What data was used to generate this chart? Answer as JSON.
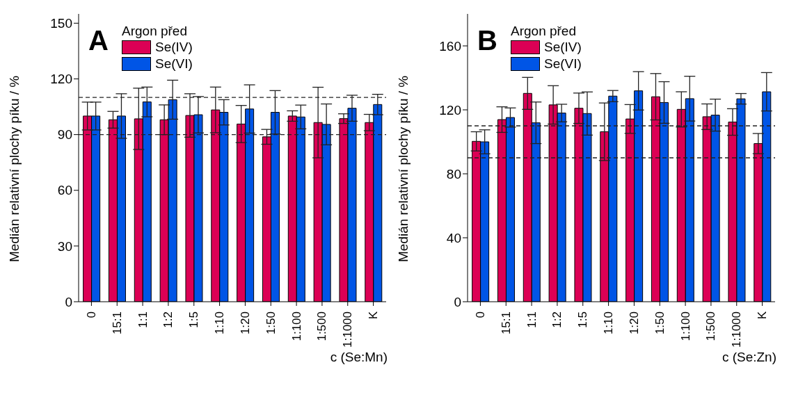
{
  "chart_data": [
    {
      "type": "bar",
      "annotations": [
        "A"
      ],
      "xlabel": "c (Se:Mn)",
      "ylabel": "Medián relativní plochy píku / %",
      "legend_title": "Argon před",
      "legend": "top left",
      "grid": false,
      "categories": [
        "0",
        "15:1",
        "1:1",
        "1:2",
        "1:5",
        "1:10",
        "1:20",
        "1:50",
        "1:100",
        "1:500",
        "1:1000",
        "K"
      ],
      "ylim": [
        0,
        155
      ],
      "yticks": [
        0,
        30,
        60,
        90,
        120,
        150
      ],
      "ref_lines": [
        {
          "axis": "y",
          "value": 90,
          "line_style": "dashed"
        },
        {
          "axis": "y",
          "value": 110,
          "line_style": "dashed"
        }
      ],
      "series": [
        {
          "name": "Se(IV)",
          "color": "#dc0055",
          "values": [
            100,
            98,
            98.5,
            98,
            100.3,
            103.3,
            95.7,
            88.8,
            100,
            96.5,
            98.6,
            96.5
          ],
          "errors": [
            7.5,
            4.5,
            16.5,
            8,
            11.7,
            12.3,
            10,
            4,
            2.8,
            19,
            2.6,
            4.4
          ]
        },
        {
          "name": "Se(VI)",
          "color": "#0055e6",
          "values": [
            100,
            100,
            107.6,
            108.8,
            100.7,
            102,
            103.8,
            102,
            99.5,
            95.5,
            104.2,
            106.2
          ],
          "errors": [
            7.5,
            12,
            8,
            10.5,
            9.8,
            6.8,
            13,
            11.7,
            6.4,
            11,
            7,
            5.5
          ]
        }
      ]
    },
    {
      "type": "bar",
      "annotations": [
        "B"
      ],
      "xlabel": "c (Se:Zn)",
      "ylabel": "Medián relativní plochy píku / %",
      "legend_title": "Argon před",
      "legend": "top left",
      "grid": false,
      "categories": [
        "0",
        "15:1",
        "1:1",
        "1:2",
        "1:5",
        "1:10",
        "1:20",
        "1:50",
        "1:100",
        "1:500",
        "1:1000",
        "K"
      ],
      "ylim": [
        0,
        180
      ],
      "yticks": [
        0,
        40,
        80,
        120,
        160
      ],
      "ref_lines": [
        {
          "axis": "y",
          "value": 90,
          "line_style": "dashed"
        },
        {
          "axis": "y",
          "value": 110,
          "line_style": "dashed"
        }
      ],
      "series": [
        {
          "name": "Se(IV)",
          "color": "#dc0055",
          "values": [
            100.3,
            113.9,
            130.3,
            123.1,
            121,
            106.3,
            114.3,
            128.2,
            120.3,
            115.7,
            112.4,
            98.9
          ],
          "errors": [
            6,
            8,
            10,
            12,
            9.5,
            18,
            9,
            14.5,
            11,
            8,
            8.3,
            6.3
          ]
        },
        {
          "name": "Se(VI)",
          "color": "#0055e6",
          "values": [
            100,
            115.2,
            111.9,
            118,
            117.7,
            128.6,
            131.9,
            124.6,
            127,
            116.7,
            126.9,
            131.3
          ],
          "errors": [
            7.5,
            6,
            13,
            5.5,
            13.5,
            3.5,
            12,
            13,
            14,
            10,
            3.3,
            12
          ]
        }
      ]
    }
  ]
}
